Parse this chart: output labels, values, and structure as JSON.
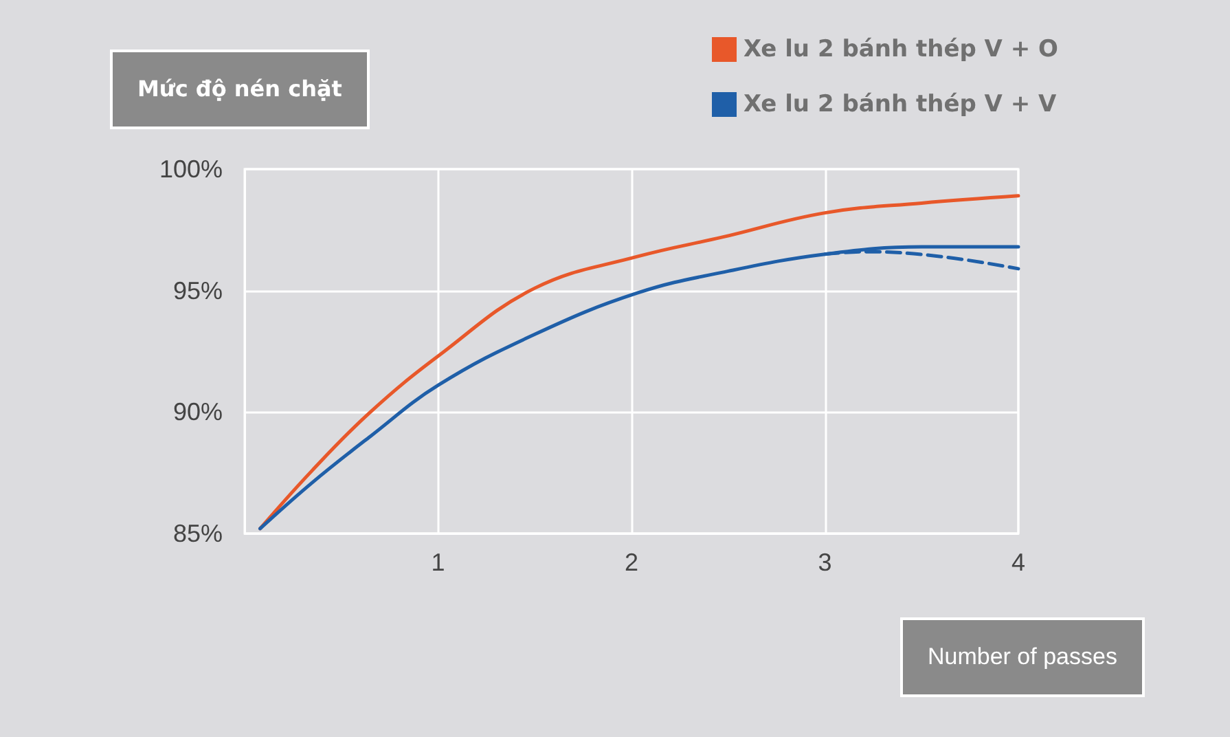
{
  "chart_data": {
    "type": "line",
    "xlabel": "Number of passes",
    "ylabel": "Mức độ nén chặt",
    "xlim": [
      0,
      4
    ],
    "xticks": [
      1,
      2,
      3,
      4
    ],
    "ylim": [
      85,
      100
    ],
    "yticks": [
      {
        "value": 85,
        "label": "85%"
      },
      {
        "value": 90,
        "label": "90%"
      },
      {
        "value": 95,
        "label": "95%"
      },
      {
        "value": 100,
        "label": "100%"
      }
    ],
    "series": [
      {
        "name": "Xe lu 2 bánh thép V + O",
        "color": "#e8582a",
        "x": [
          0.08,
          0.35,
          0.65,
          1.0,
          1.5,
          2.03,
          2.47,
          3.0,
          3.5,
          4.0
        ],
        "values": [
          85.2,
          87.6,
          90.0,
          92.3,
          95.1,
          96.4,
          97.2,
          98.2,
          98.6,
          98.9
        ]
      },
      {
        "name": "Xe lu 2 bánh thép V + V",
        "color": "#1f5fa8",
        "x": [
          0.08,
          0.35,
          0.65,
          1.0,
          1.5,
          2.03,
          2.5,
          3.0,
          3.5,
          4.0
        ],
        "values": [
          85.2,
          87.1,
          89.0,
          91.1,
          93.2,
          94.9,
          95.8,
          96.5,
          96.8,
          96.8
        ]
      },
      {
        "color": "#1f5fa8",
        "line_style": "dashed",
        "x": [
          3.0,
          3.21,
          3.6,
          4.0
        ],
        "values": [
          96.5,
          96.6,
          96.4,
          95.9
        ]
      }
    ],
    "grid": true,
    "legend": "top right",
    "marker": "none",
    "line_style": "solid"
  }
}
